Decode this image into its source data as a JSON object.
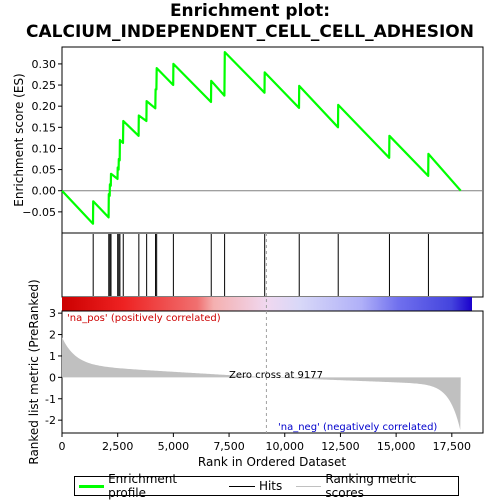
{
  "title_line1": "Enrichment plot:",
  "title_line2": "CALCIUM_INDEPENDENT_CELL_CELL_ADHESION",
  "chart_data": {
    "type": "line",
    "xlabel": "Rank in Ordered Dataset",
    "ylabel_top": "Enrichment score (ES)",
    "ylabel_bottom": "Ranked list metric (PreRanked)",
    "x_ticks": [
      "0",
      "2,500",
      "5,000",
      "7,500",
      "10,000",
      "12,500",
      "15,000",
      "17,500"
    ],
    "x_tick_values": [
      0,
      2500,
      5000,
      7500,
      10000,
      12500,
      15000,
      17500
    ],
    "xlim": [
      0,
      18900
    ],
    "es_ylim": [
      -0.1,
      0.34
    ],
    "es_ticks": [
      "0.30",
      "0.25",
      "0.20",
      "0.15",
      "0.10",
      "0.05",
      "0.00",
      "−0.05"
    ],
    "es_tick_values": [
      0.3,
      0.25,
      0.2,
      0.15,
      0.1,
      0.05,
      0.0,
      -0.05
    ],
    "metric_ylim": [
      -2.6,
      3.1
    ],
    "metric_ticks": [
      "3",
      "2",
      "1",
      "0",
      "-1",
      "-2"
    ],
    "metric_tick_values": [
      3,
      2,
      1,
      0,
      -1,
      -2
    ],
    "hits": [
      1400,
      2100,
      2150,
      2200,
      2500,
      2550,
      2600,
      2750,
      3450,
      3800,
      4200,
      4250,
      5000,
      6700,
      7300,
      9100,
      10650,
      12400,
      14700,
      16450
    ],
    "enrichment_profile": {
      "name": "Enrichment profile",
      "color": "#00ff00",
      "points": [
        [
          0,
          0.0
        ],
        [
          1390,
          -0.078
        ],
        [
          1400,
          -0.025
        ],
        [
          2090,
          -0.063
        ],
        [
          2100,
          -0.008
        ],
        [
          2140,
          -0.012
        ],
        [
          2150,
          0.015
        ],
        [
          2190,
          0.012
        ],
        [
          2200,
          0.04
        ],
        [
          2490,
          0.028
        ],
        [
          2500,
          0.055
        ],
        [
          2540,
          0.05
        ],
        [
          2550,
          0.075
        ],
        [
          2590,
          0.072
        ],
        [
          2600,
          0.12
        ],
        [
          2740,
          0.113
        ],
        [
          2750,
          0.165
        ],
        [
          3440,
          0.13
        ],
        [
          3450,
          0.178
        ],
        [
          3790,
          0.165
        ],
        [
          3800,
          0.212
        ],
        [
          4190,
          0.195
        ],
        [
          4200,
          0.24
        ],
        [
          4240,
          0.24
        ],
        [
          4250,
          0.29
        ],
        [
          4990,
          0.25
        ],
        [
          5000,
          0.3
        ],
        [
          6690,
          0.21
        ],
        [
          6700,
          0.26
        ],
        [
          7290,
          0.225
        ],
        [
          7300,
          0.275
        ],
        [
          7310,
          0.328
        ],
        [
          9090,
          0.232
        ],
        [
          9100,
          0.28
        ],
        [
          10640,
          0.196
        ],
        [
          10650,
          0.248
        ],
        [
          12390,
          0.15
        ],
        [
          12400,
          0.203
        ],
        [
          14690,
          0.078
        ],
        [
          14700,
          0.13
        ],
        [
          16440,
          0.035
        ],
        [
          16450,
          0.087
        ],
        [
          17900,
          0.0
        ]
      ]
    },
    "hits_label": "Hits",
    "metric_series_label": "Ranking metric scores",
    "zero_cross_label": "Zero cross at 9177",
    "zero_cross_rank": 9177,
    "na_pos_label": "'na_pos' (positively correlated)",
    "na_neg_label": "'na_neg' (negatively correlated)",
    "n_total": 17900
  },
  "colors": {
    "es_line": "#00ff00",
    "pos_label": "#cc0000",
    "neg_label": "#0000cc",
    "metric_fill": "#c0c0c0"
  }
}
